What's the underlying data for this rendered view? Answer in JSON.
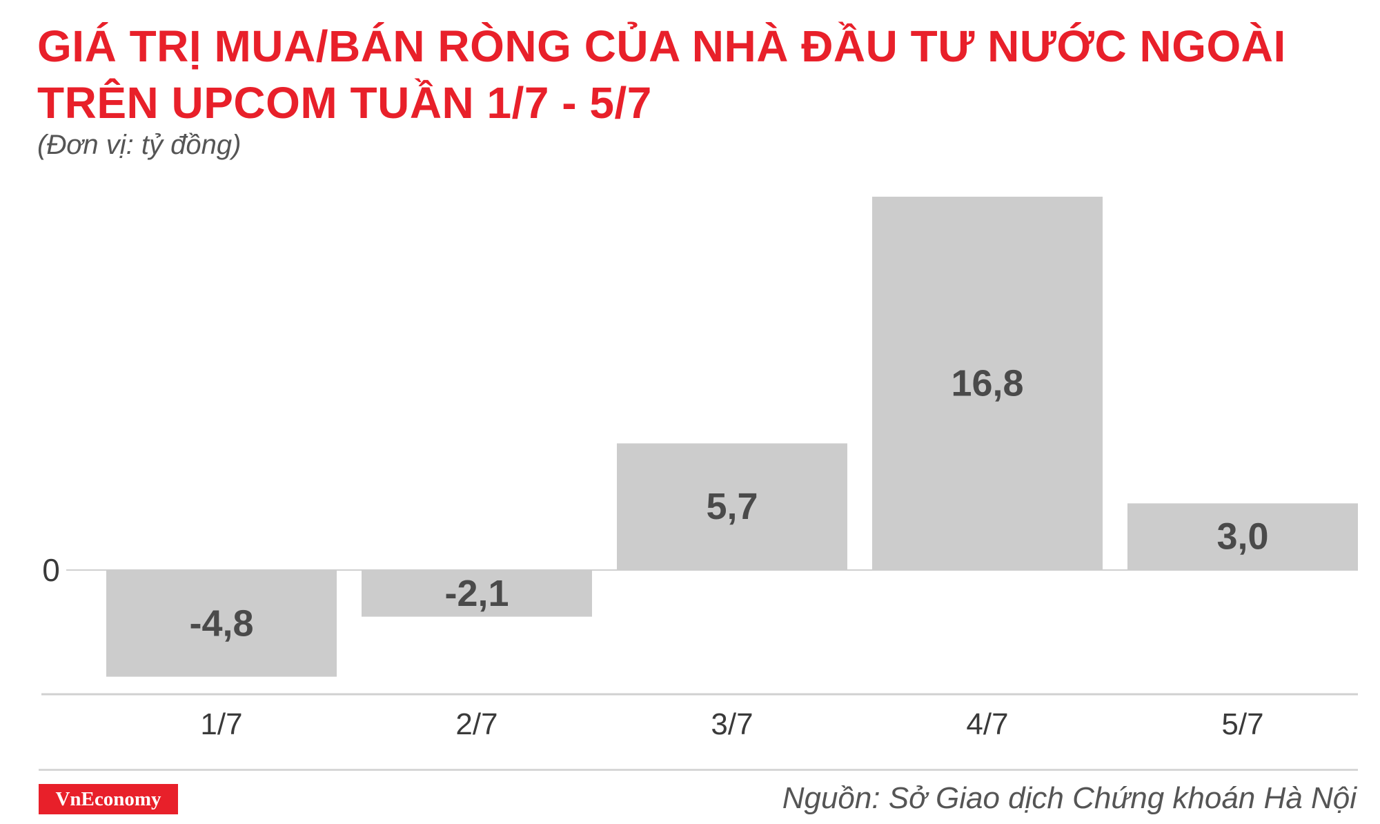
{
  "header": {
    "title_line1": "GIÁ TRỊ MUA/BÁN RÒNG CỦA NHÀ ĐẦU TƯ NƯỚC NGOÀI",
    "title_line2": "TRÊN UPCOM TUẦN 1/7 - 5/7",
    "unit": "(Đơn vị: tỷ đồng)"
  },
  "footer": {
    "logo_text": "VnEconomy",
    "source": "Nguồn: Sở Giao dịch Chứng khoán Hà Nội"
  },
  "colors": {
    "title": "#e8202a",
    "bar": "#cccccc",
    "bar_label": "#4a4a4a",
    "logo_bg": "#e8202a"
  },
  "chart_data": {
    "type": "bar",
    "title": "GIÁ TRỊ MUA/BÁN RÒNG CỦA NHÀ ĐẦU TƯ NƯỚC NGOÀI TRÊN UPCOM TUẦN 1/7 - 5/7",
    "subtitle": "(Đơn vị: tỷ đồng)",
    "categories": [
      "1/7",
      "2/7",
      "3/7",
      "4/7",
      "5/7"
    ],
    "values": [
      -4.8,
      -2.1,
      5.7,
      16.8,
      3.0
    ],
    "value_labels": [
      "-4,8",
      "-2,1",
      "5,7",
      "16,8",
      "3,0"
    ],
    "zero_label": "0",
    "ylim": [
      -5.5,
      17
    ],
    "grid": false,
    "legend": "none"
  }
}
